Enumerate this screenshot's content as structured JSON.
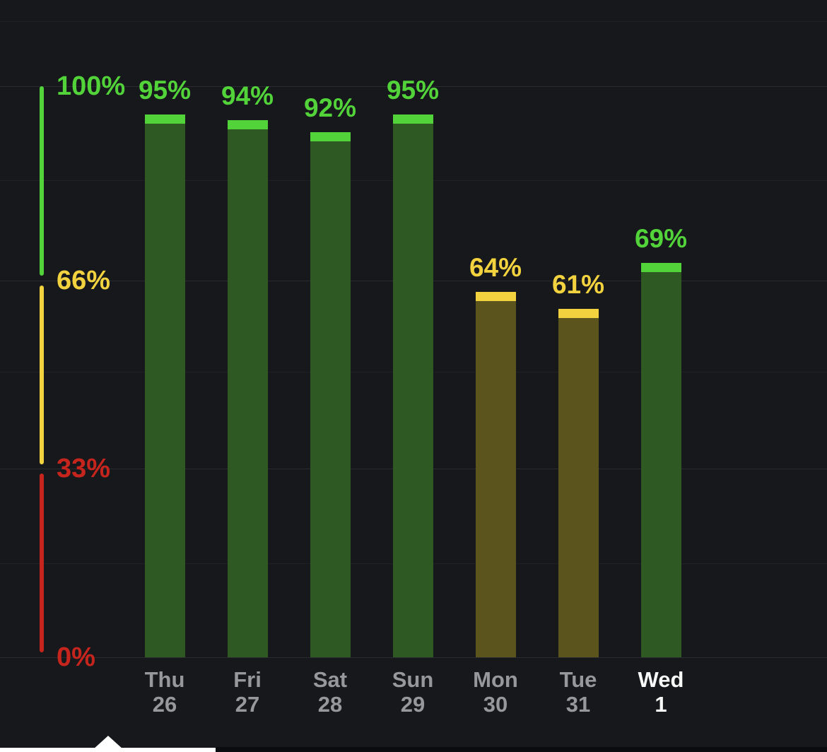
{
  "chart_data": {
    "type": "bar",
    "title": "",
    "xlabel": "",
    "ylabel": "",
    "ylim": [
      0,
      100
    ],
    "grid": "subtle-horizontal",
    "legend_position": "none",
    "categories": [
      "Thu 26",
      "Fri 27",
      "Sat 28",
      "Sun 29",
      "Mon 30",
      "Tue 31",
      "Wed 1"
    ],
    "values": [
      95,
      94,
      92,
      95,
      64,
      61,
      69
    ],
    "days": [
      {
        "day": "Thu",
        "date": "26",
        "value": 95,
        "label": "95%",
        "zone": "green",
        "selected": false
      },
      {
        "day": "Fri",
        "date": "27",
        "value": 94,
        "label": "94%",
        "zone": "green",
        "selected": false
      },
      {
        "day": "Sat",
        "date": "28",
        "value": 92,
        "label": "92%",
        "zone": "green",
        "selected": false
      },
      {
        "day": "Sun",
        "date": "29",
        "value": 95,
        "label": "95%",
        "zone": "green",
        "selected": false
      },
      {
        "day": "Mon",
        "date": "30",
        "value": 64,
        "label": "64%",
        "zone": "yellow",
        "selected": false
      },
      {
        "day": "Tue",
        "date": "31",
        "value": 61,
        "label": "61%",
        "zone": "yellow",
        "selected": false
      },
      {
        "day": "Wed",
        "date": "1",
        "value": 69,
        "label": "69%",
        "zone": "green",
        "selected": true
      }
    ],
    "axis_ticks": [
      {
        "label": "100%",
        "value": 100,
        "color": "green"
      },
      {
        "label": "66%",
        "value": 66,
        "color": "yellow"
      },
      {
        "label": "33%",
        "value": 33,
        "color": "red"
      },
      {
        "label": "0%",
        "value": 0,
        "color": "red"
      }
    ],
    "zones": [
      {
        "name": "green",
        "from": 66,
        "to": 100
      },
      {
        "name": "yellow",
        "from": 33,
        "to": 66
      },
      {
        "name": "red",
        "from": 0,
        "to": 33
      }
    ]
  },
  "colors": {
    "background": "#16181c",
    "green_bright": "#53d33a",
    "green_dark": "#2e5922",
    "yellow_bright": "#f2d23e",
    "yellow_dark": "#5c541d",
    "red": "#c6251d",
    "red_dark": "#5a1b17",
    "label_gray": "#96989b",
    "label_white": "#f7f8f8",
    "panel_white": "#ffffff",
    "panel_dark": "#0a0c0f"
  }
}
